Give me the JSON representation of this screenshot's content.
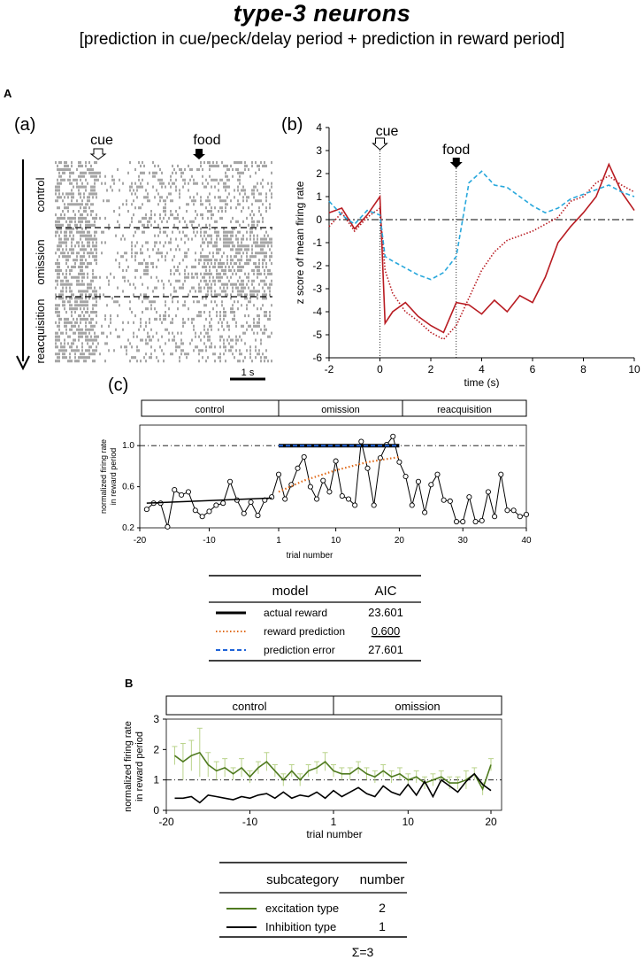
{
  "header": {
    "title": "type-3 neurons",
    "subtitle": "[prediction in cue/peck/delay period + prediction in reward period]"
  },
  "sectionA": {
    "label": "A",
    "raster": {
      "panel_label": "(a)",
      "cue_label": "cue",
      "food_label": "food",
      "phases": [
        "control",
        "omission",
        "reacquisition"
      ],
      "scale_label": "1 s"
    },
    "zscore": {
      "panel_label": "(b)",
      "cue_label": "cue",
      "food_label": "food"
    },
    "trials": {
      "panel_label": "(c)",
      "phases": [
        "control",
        "omission",
        "reacquisition"
      ]
    },
    "aic_table": {
      "col_model": "model",
      "col_aic": "AIC",
      "rows": [
        {
          "model": "actual reward",
          "aic": "23.601"
        },
        {
          "model": "reward prediction",
          "aic": "0.600"
        },
        {
          "model": "prediction error",
          "aic": "27.601"
        }
      ]
    }
  },
  "sectionB": {
    "label": "B",
    "phases": [
      "control",
      "omission"
    ],
    "sub_table": {
      "col_sub": "subcategory",
      "col_num": "number",
      "rows": [
        {
          "name": "excitation type",
          "number": "2"
        },
        {
          "name": "Inhibition type",
          "number": "1"
        }
      ],
      "sum": "Σ=3"
    }
  },
  "chart_data": [
    {
      "type": "line",
      "id": "zscore",
      "title": "",
      "xlabel": "time (s)",
      "ylabel": "z score of mean firing rate",
      "xlim": [
        -2,
        10
      ],
      "ylim": [
        -6,
        4
      ],
      "xticks": [
        -2,
        0,
        2,
        4,
        6,
        8,
        10
      ],
      "yticks": [
        -6,
        -5,
        -4,
        -3,
        -2,
        -1,
        0,
        1,
        2,
        3,
        4
      ],
      "markers": {
        "cue": 0,
        "food": 3
      },
      "series": [
        {
          "name": "actual reward",
          "color": "#b81c22",
          "style": "solid",
          "x": [
            -2,
            -1.5,
            -1,
            -0.5,
            0,
            0.2,
            0.5,
            1,
            1.5,
            2,
            2.5,
            3,
            3.5,
            4,
            4.5,
            5,
            5.5,
            6,
            6.5,
            7,
            7.5,
            8,
            8.5,
            9,
            9.5,
            10
          ],
          "y": [
            0.3,
            0.5,
            -0.4,
            0.2,
            1.0,
            -4.5,
            -4.0,
            -3.6,
            -4.2,
            -4.6,
            -4.9,
            -3.6,
            -3.7,
            -4.1,
            -3.5,
            -4.0,
            -3.3,
            -3.6,
            -2.5,
            -1.0,
            -0.3,
            0.3,
            1.0,
            2.4,
            1.2,
            0.4
          ]
        },
        {
          "name": "reward prediction",
          "color": "#b81c22",
          "style": "dotted",
          "x": [
            -2,
            -1.5,
            -1,
            -0.5,
            0,
            0.2,
            0.5,
            1,
            1.5,
            2,
            2.5,
            3,
            3.5,
            4,
            4.5,
            5,
            5.5,
            6,
            6.5,
            7,
            7.5,
            8,
            8.5,
            9,
            9.5,
            10
          ],
          "y": [
            -0.3,
            0.3,
            -0.5,
            0.1,
            0.5,
            -2.2,
            -3.2,
            -4.0,
            -4.4,
            -4.9,
            -5.2,
            -4.6,
            -3.4,
            -2.2,
            -1.4,
            -0.9,
            -0.7,
            -0.5,
            -0.2,
            0.1,
            0.8,
            1.0,
            1.6,
            1.9,
            1.5,
            1.2
          ]
        },
        {
          "name": "prediction error",
          "color": "#29a8dc",
          "style": "dashed",
          "x": [
            -2,
            -1.5,
            -1,
            -0.5,
            0,
            0.2,
            0.5,
            1,
            1.5,
            2,
            2.5,
            3,
            3.5,
            4,
            4.5,
            5,
            5.5,
            6,
            6.5,
            7,
            7.5,
            8,
            8.5,
            9,
            9.5,
            10
          ],
          "y": [
            0.8,
            0.2,
            -0.2,
            0.4,
            0.2,
            -1.6,
            -1.8,
            -2.1,
            -2.4,
            -2.6,
            -2.3,
            -1.6,
            1.6,
            2.1,
            1.5,
            1.4,
            1.0,
            0.6,
            0.3,
            0.5,
            0.9,
            1.1,
            1.3,
            1.5,
            1.2,
            1.0
          ]
        }
      ]
    },
    {
      "type": "line",
      "id": "trial_rates",
      "xlabel": "trial number",
      "ylabel": "normalized firing rate in reward period",
      "xlim": [
        -20,
        40
      ],
      "ylim": [
        0.2,
        1.2
      ],
      "xticks": [
        -20,
        -10,
        1,
        10,
        20,
        30,
        40
      ],
      "yticks": [
        0.2,
        0.6,
        1.0
      ],
      "reference_y": 1.0,
      "series": [
        {
          "name": "observed",
          "x": [
            -19,
            -18,
            -17,
            -16,
            -15,
            -14,
            -13,
            -12,
            -11,
            -10,
            -9,
            -8,
            -7,
            -6,
            -5,
            -4,
            -3,
            -2,
            -1,
            1,
            2,
            3,
            4,
            5,
            6,
            7,
            8,
            9,
            10,
            11,
            12,
            13,
            14,
            15,
            16,
            17,
            18,
            19,
            20,
            21,
            22,
            23,
            24,
            25,
            26,
            27,
            28,
            29,
            30,
            31,
            32,
            33,
            34,
            35,
            36,
            37,
            38,
            39,
            40
          ],
          "y": [
            0.38,
            0.44,
            0.44,
            0.21,
            0.57,
            0.52,
            0.55,
            0.37,
            0.31,
            0.36,
            0.42,
            0.44,
            0.65,
            0.47,
            0.34,
            0.45,
            0.32,
            0.47,
            0.5,
            0.72,
            0.48,
            0.62,
            0.78,
            0.89,
            0.6,
            0.48,
            0.66,
            0.55,
            0.85,
            0.51,
            0.48,
            0.42,
            1.04,
            0.78,
            0.42,
            0.88,
            1.01,
            1.09,
            0.84,
            0.7,
            0.42,
            0.65,
            0.35,
            0.62,
            0.72,
            0.47,
            0.46,
            0.26,
            0.26,
            0.5,
            0.26,
            0.27,
            0.55,
            0.31,
            0.72,
            0.37,
            0.37,
            0.31,
            0.33
          ]
        },
        {
          "name": "actual reward",
          "x": [
            1,
            20
          ],
          "y": [
            1.0,
            1.0
          ]
        },
        {
          "name": "reward prediction",
          "x": [
            1,
            5,
            10,
            15,
            20
          ],
          "y": [
            0.55,
            0.66,
            0.76,
            0.84,
            0.89
          ]
        },
        {
          "name": "control fit",
          "x": [
            -19,
            -1
          ],
          "y": [
            0.44,
            0.49
          ]
        }
      ]
    },
    {
      "type": "line",
      "id": "subcategory_rates",
      "xlabel": "trial number",
      "ylabel": "normalized firing rate in reward period",
      "xlim": [
        -20,
        20
      ],
      "ylim": [
        0,
        3
      ],
      "xticks": [
        -20,
        -10,
        1,
        10,
        20
      ],
      "yticks": [
        0,
        1,
        2,
        3
      ],
      "reference_y": 1.0,
      "series": [
        {
          "name": "excitation type",
          "color": "#4f7a1f",
          "x": [
            -19,
            -18,
            -17,
            -16,
            -15,
            -14,
            -13,
            -12,
            -11,
            -10,
            -9,
            -8,
            -7,
            -6,
            -5,
            -4,
            -3,
            -2,
            -1,
            1,
            2,
            3,
            4,
            5,
            6,
            7,
            8,
            9,
            10,
            11,
            12,
            13,
            14,
            15,
            16,
            17,
            18,
            19,
            20
          ],
          "y": [
            1.8,
            1.6,
            1.8,
            1.9,
            1.5,
            1.3,
            1.4,
            1.2,
            1.4,
            1.1,
            1.4,
            1.6,
            1.3,
            1.0,
            1.3,
            1.0,
            1.3,
            1.4,
            1.6,
            1.3,
            1.2,
            1.2,
            1.4,
            1.2,
            1.1,
            1.3,
            1.1,
            1.2,
            1.0,
            1.1,
            0.9,
            1.0,
            1.1,
            0.9,
            0.9,
            1.0,
            1.2,
            0.7,
            1.5
          ],
          "err": [
            0.3,
            0.6,
            0.5,
            0.8,
            0.4,
            0.3,
            0.3,
            0.2,
            0.3,
            0.2,
            0.2,
            0.3,
            0.2,
            0.2,
            0.2,
            0.2,
            0.2,
            0.2,
            0.3,
            0.2,
            0.2,
            0.2,
            0.2,
            0.2,
            0.2,
            0.2,
            0.2,
            0.2,
            0.2,
            0.2,
            0.2,
            0.2,
            0.2,
            0.2,
            0.2,
            0.3,
            0.2,
            0.2,
            0.2
          ]
        },
        {
          "name": "Inhibition type",
          "color": "#000000",
          "x": [
            -19,
            -18,
            -17,
            -16,
            -15,
            -14,
            -13,
            -12,
            -11,
            -10,
            -9,
            -8,
            -7,
            -6,
            -5,
            -4,
            -3,
            -2,
            -1,
            1,
            2,
            3,
            4,
            5,
            6,
            7,
            8,
            9,
            10,
            11,
            12,
            13,
            14,
            15,
            16,
            17,
            18,
            19,
            20
          ],
          "y": [
            0.4,
            0.4,
            0.45,
            0.25,
            0.5,
            0.45,
            0.4,
            0.35,
            0.45,
            0.4,
            0.5,
            0.55,
            0.4,
            0.6,
            0.4,
            0.5,
            0.45,
            0.6,
            0.4,
            0.65,
            0.45,
            0.6,
            0.75,
            0.55,
            0.45,
            0.8,
            0.6,
            0.5,
            0.85,
            0.5,
            0.95,
            0.45,
            1.0,
            0.8,
            0.6,
            0.95,
            1.2,
            0.85,
            0.65
          ]
        }
      ]
    }
  ]
}
